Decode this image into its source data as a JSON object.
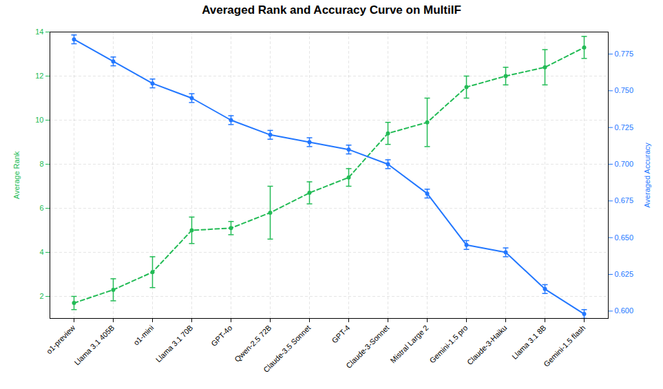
{
  "chart_data": {
    "type": "line",
    "title": "Averaged Rank and Accuracy Curve on MultiIF",
    "categories": [
      "o1-preview",
      "Llama 3.1 405B",
      "o1-mini",
      "Llama 3.1 70B",
      "GPT-4o",
      "Qwen-2.5 72B",
      "Claude-3.5 Sonnet",
      "GPT-4",
      "Claude-3-Sonnet",
      "Mistral Large 2",
      "Gemini-1.5 pro",
      "Claude-3-Haiku",
      "Llama 3.1 8B",
      "Gemini-1.5 flash"
    ],
    "series": [
      {
        "color": "#22bb55",
        "line_style": "dashed",
        "marker": "circle",
        "values": [
          1.7,
          2.3,
          3.1,
          5.0,
          5.1,
          5.8,
          6.7,
          7.4,
          9.4,
          9.9,
          11.5,
          12.0,
          12.4,
          13.3
        ],
        "errors": [
          0.3,
          0.5,
          0.7,
          0.6,
          0.3,
          1.2,
          0.5,
          0.4,
          0.5,
          1.1,
          0.5,
          0.4,
          0.8,
          0.5
        ]
      },
      {
        "axis": "y2",
        "color": "#2277ff",
        "line_style": "solid",
        "marker": "circle",
        "values": [
          0.785,
          0.77,
          0.755,
          0.745,
          0.73,
          0.72,
          0.715,
          0.71,
          0.7,
          0.68,
          0.645,
          0.64,
          0.615,
          0.598
        ],
        "errors": [
          0.003,
          0.003,
          0.003,
          0.003,
          0.003,
          0.003,
          0.003,
          0.003,
          0.003,
          0.003,
          0.003,
          0.003,
          0.003,
          0.003
        ]
      }
    ],
    "ylabel": "Average Rank",
    "y2label": "Averaged Accuracy",
    "ylim": [
      1,
      14
    ],
    "yticks": [
      2,
      4,
      6,
      8,
      10,
      12,
      14
    ],
    "y2lim": [
      0.595,
      0.79
    ],
    "y2ticks": [
      {
        "value": 0.6,
        "label": "0.600"
      },
      0.625,
      {
        "value": 0.65,
        "label": "0.650"
      },
      0.675,
      {
        "value": 0.7,
        "label": "0.700"
      },
      0.725,
      {
        "value": 0.75,
        "label": "0.750"
      },
      0.775
    ],
    "grid": true
  }
}
